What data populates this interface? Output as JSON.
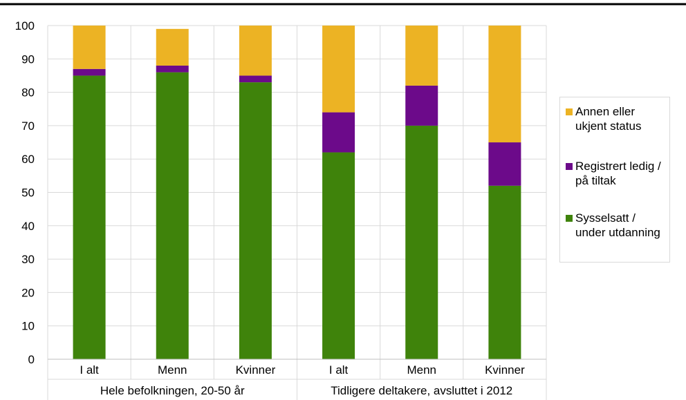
{
  "chart_data": {
    "type": "bar",
    "stacked": true,
    "title": "",
    "xlabel": "",
    "ylabel": "",
    "ylim": [
      0,
      100
    ],
    "yticks": [
      0,
      10,
      20,
      30,
      40,
      50,
      60,
      70,
      80,
      90,
      100
    ],
    "grid": true,
    "legend_position": "right",
    "groups": [
      {
        "label": "Hele befolkningen, 20-50 år",
        "categories": [
          "I alt",
          "Menn",
          "Kvinner"
        ]
      },
      {
        "label": "Tidligere deltakere, avsluttet i 2012",
        "categories": [
          "I alt",
          "Menn",
          "Kvinner"
        ]
      }
    ],
    "categories": [
      "I alt",
      "Menn",
      "Kvinner",
      "I alt",
      "Menn",
      "Kvinner"
    ],
    "series": [
      {
        "name": "Sysselsatt / under utdanning",
        "color": "#3f830b",
        "values": [
          85,
          86,
          83,
          62,
          70,
          52
        ]
      },
      {
        "name": "Registrert ledig / på tiltak",
        "color": "#6c0a8a",
        "values": [
          2,
          2,
          2,
          12,
          12,
          13
        ]
      },
      {
        "name": "Annen eller ukjent status",
        "color": "#ecb324",
        "values": [
          13,
          11,
          15,
          26,
          18,
          35
        ]
      }
    ]
  }
}
